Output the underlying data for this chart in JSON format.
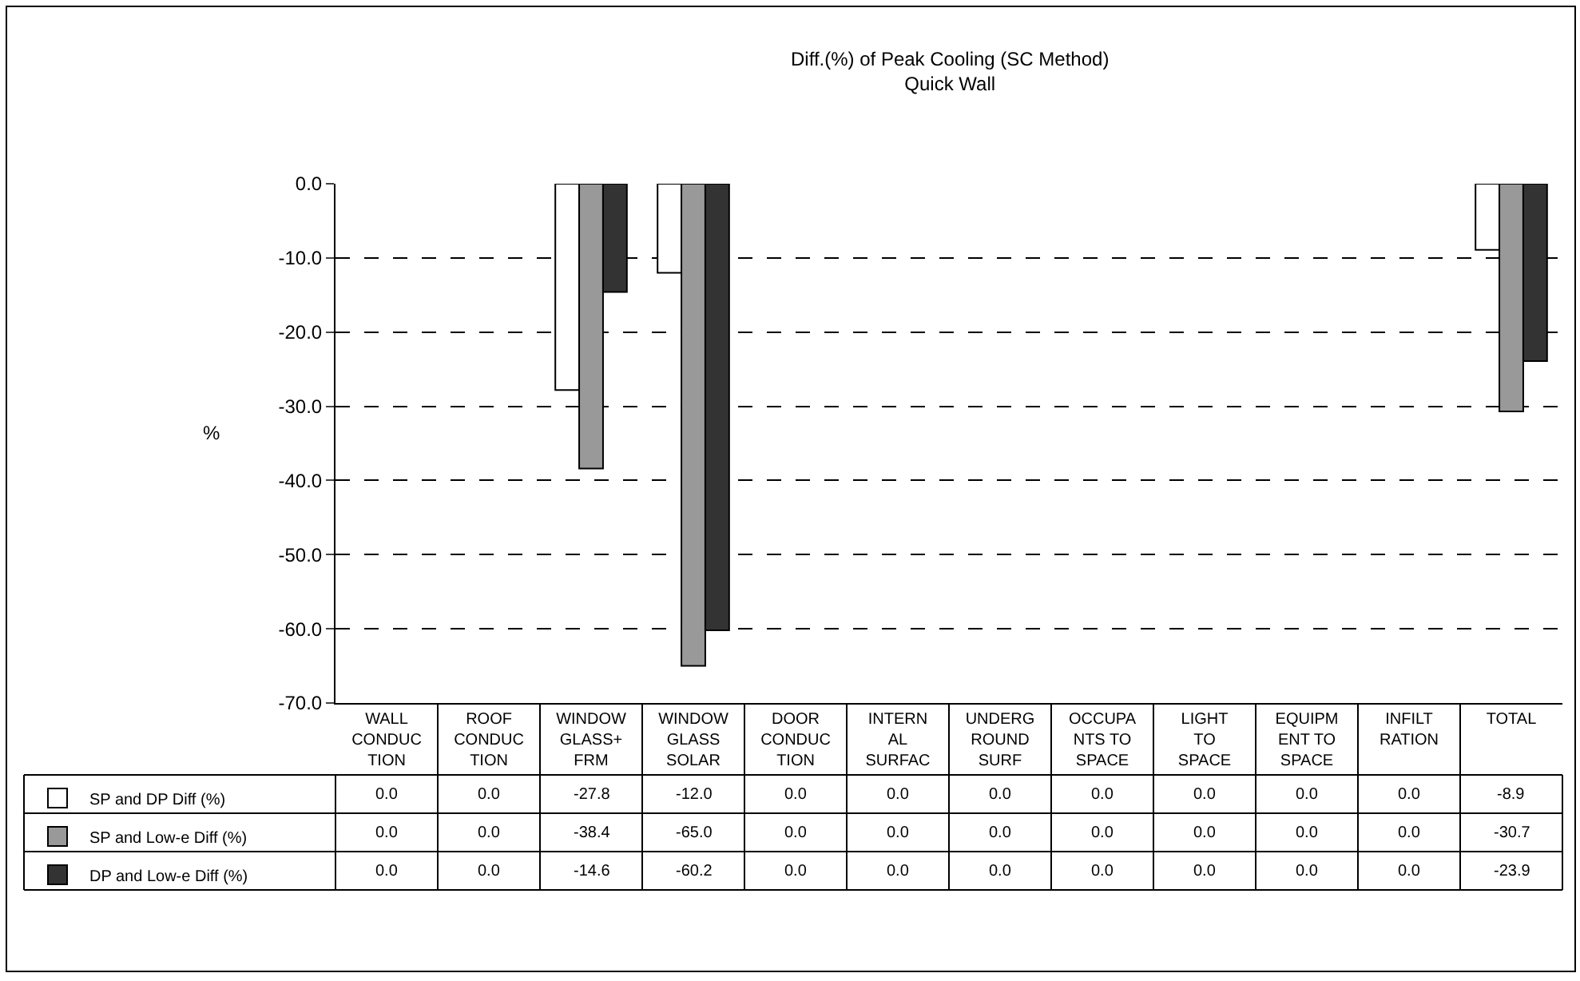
{
  "chart_data": {
    "type": "bar",
    "title": "Diff.(%) of Peak Cooling (SC Method)",
    "subtitle": "Quick Wall",
    "ylabel": "%",
    "categories": [
      "WALL CONDUCTION",
      "ROOF CONDUCTION",
      "WINDOW GLASS+FRM",
      "WINDOW GLASS SOLAR",
      "DOOR CONDUCTION",
      "INTERNAL SURFAC",
      "UNDERGROUND SURF",
      "OCCUPANTS TO SPACE",
      "LIGHT TO SPACE",
      "EQUIPMENT TO SPACE",
      "INFILTRATION",
      "TOTAL"
    ],
    "series": [
      {
        "name": "SP and DP Diff (%)",
        "color": "#ffffff",
        "values": [
          0.0,
          0.0,
          -27.8,
          -12.0,
          0.0,
          0.0,
          0.0,
          0.0,
          0.0,
          0.0,
          0.0,
          -8.9
        ],
        "value_labels": [
          "0.0",
          "0.0",
          "-27.8",
          "-12.0",
          "0.0",
          "0.0",
          "0.0",
          "0.0",
          "0.0",
          "0.0",
          "0.0",
          "-8.9"
        ]
      },
      {
        "name": "SP and Low-e Diff (%)",
        "color": "#999999",
        "values": [
          0.0,
          0.0,
          -38.4,
          -65.0,
          0.0,
          0.0,
          0.0,
          0.0,
          0.0,
          0.0,
          0.0,
          -30.7
        ],
        "value_labels": [
          "0.0",
          "0.0",
          "-38.4",
          "-65.0",
          "0.0",
          "0.0",
          "0.0",
          "0.0",
          "0.0",
          "0.0",
          "0.0",
          "-30.7"
        ]
      },
      {
        "name": "DP and Low-e Diff (%)",
        "color": "#333333",
        "values": [
          0.0,
          0.0,
          -14.6,
          -60.2,
          0.0,
          0.0,
          0.0,
          0.0,
          0.0,
          0.0,
          0.0,
          -23.9
        ],
        "value_labels": [
          "0.0",
          "0.0",
          "-14.6",
          "-60.2",
          "0.0",
          "0.0",
          "0.0",
          "0.0",
          "0.0",
          "0.0",
          "0.0",
          "-23.9"
        ]
      }
    ],
    "ylim": [
      -70,
      0
    ],
    "yticks": [
      {
        "value": 0,
        "label": "0.0"
      },
      {
        "value": -10,
        "label": "-10.0"
      },
      {
        "value": -20,
        "label": "-20.0"
      },
      {
        "value": -30,
        "label": "-30.0"
      },
      {
        "value": -40,
        "label": "-40.0"
      },
      {
        "value": -50,
        "label": "-50.0"
      },
      {
        "value": -60,
        "label": "-60.0"
      },
      {
        "value": -70,
        "label": "-70.0"
      }
    ],
    "grid": "y",
    "line_style": "dashed",
    "legend": "bottom left"
  }
}
